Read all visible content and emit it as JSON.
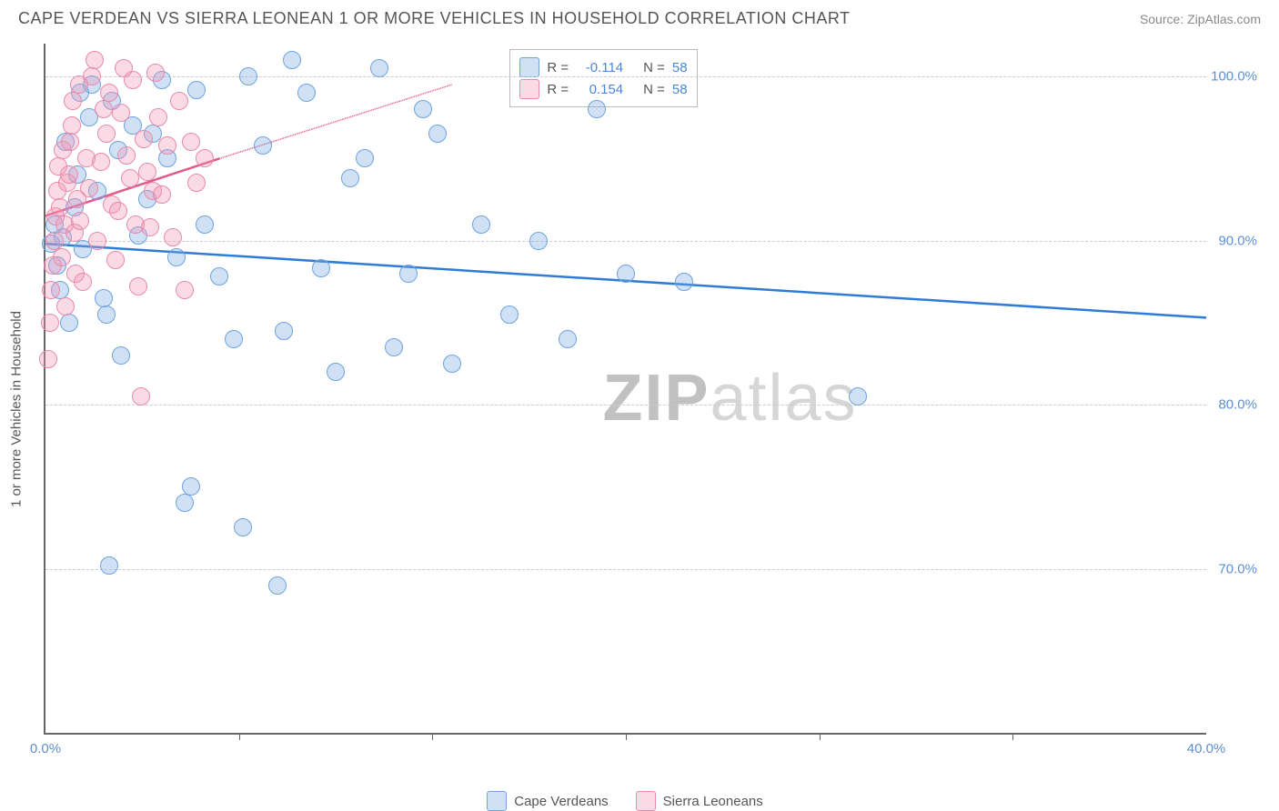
{
  "header": {
    "title": "CAPE VERDEAN VS SIERRA LEONEAN 1 OR MORE VEHICLES IN HOUSEHOLD CORRELATION CHART",
    "source_prefix": "Source: ",
    "source": "ZipAtlas.com"
  },
  "chart": {
    "type": "scatter",
    "ylabel": "1 or more Vehicles in Household",
    "xlim": [
      0,
      40
    ],
    "ylim": [
      60,
      102
    ],
    "xticks": [
      {
        "v": 0,
        "l": "0.0%"
      },
      {
        "v": 40,
        "l": "40.0%"
      }
    ],
    "xticks_minor": [
      6.67,
      13.33,
      20,
      26.67,
      33.33
    ],
    "yticks": [
      {
        "v": 70,
        "l": "70.0%"
      },
      {
        "v": 80,
        "l": "80.0%"
      },
      {
        "v": 90,
        "l": "90.0%"
      },
      {
        "v": 100,
        "l": "100.0%"
      }
    ],
    "grid_color": "#cccccc",
    "background_color": "#ffffff",
    "series": [
      {
        "name": "Cape Verdeans",
        "color_fill": "rgba(120,170,230,0.35)",
        "color_stroke": "#6fa3dd",
        "line_color": "#2f7cd6",
        "line_dash": "solid",
        "R": "-0.114",
        "N": "58",
        "trend": {
          "x1": 0,
          "y1": 89.8,
          "x2": 40,
          "y2": 85.3
        },
        "trend_extrap": null,
        "points": [
          [
            0.2,
            89.8
          ],
          [
            0.3,
            91
          ],
          [
            0.4,
            88.5
          ],
          [
            0.5,
            87
          ],
          [
            0.6,
            90.2
          ],
          [
            0.7,
            96
          ],
          [
            0.8,
            85
          ],
          [
            1.0,
            92
          ],
          [
            1.1,
            94
          ],
          [
            1.2,
            99
          ],
          [
            1.3,
            89.5
          ],
          [
            1.5,
            97.5
          ],
          [
            1.6,
            99.5
          ],
          [
            1.8,
            93
          ],
          [
            2.0,
            86.5
          ],
          [
            2.1,
            85.5
          ],
          [
            2.2,
            70.2
          ],
          [
            2.3,
            98.5
          ],
          [
            2.5,
            95.5
          ],
          [
            2.6,
            83
          ],
          [
            3.0,
            97
          ],
          [
            3.2,
            90.3
          ],
          [
            3.5,
            92.5
          ],
          [
            3.7,
            96.5
          ],
          [
            4.0,
            99.8
          ],
          [
            4.2,
            95
          ],
          [
            4.5,
            89
          ],
          [
            4.8,
            74
          ],
          [
            5.0,
            75
          ],
          [
            5.2,
            99.2
          ],
          [
            5.5,
            91
          ],
          [
            6.0,
            87.8
          ],
          [
            6.5,
            84
          ],
          [
            6.8,
            72.5
          ],
          [
            7.0,
            100
          ],
          [
            7.5,
            95.8
          ],
          [
            8.0,
            69
          ],
          [
            8.2,
            84.5
          ],
          [
            8.5,
            101
          ],
          [
            9.0,
            99
          ],
          [
            9.5,
            88.3
          ],
          [
            10,
            82
          ],
          [
            10.5,
            93.8
          ],
          [
            11,
            95
          ],
          [
            11.5,
            100.5
          ],
          [
            12,
            83.5
          ],
          [
            12.5,
            88
          ],
          [
            13,
            98
          ],
          [
            13.5,
            96.5
          ],
          [
            14,
            82.5
          ],
          [
            15,
            91
          ],
          [
            16,
            85.5
          ],
          [
            17,
            90
          ],
          [
            18,
            84
          ],
          [
            19,
            98
          ],
          [
            22,
            87.5
          ],
          [
            28,
            80.5
          ],
          [
            20,
            88
          ]
        ]
      },
      {
        "name": "Sierra Leoneans",
        "color_fill": "rgba(240,150,180,0.35)",
        "color_stroke": "#e88aad",
        "line_color": "#e05a8c",
        "line_dash": "solid",
        "R": "0.154",
        "N": "58",
        "trend": {
          "x1": 0,
          "y1": 91.5,
          "x2": 6,
          "y2": 95
        },
        "trend_extrap": {
          "x1": 6,
          "y1": 95,
          "x2": 14,
          "y2": 99.5
        },
        "points": [
          [
            0.1,
            82.8
          ],
          [
            0.15,
            85
          ],
          [
            0.2,
            87
          ],
          [
            0.25,
            88.5
          ],
          [
            0.3,
            90
          ],
          [
            0.35,
            91.5
          ],
          [
            0.4,
            93
          ],
          [
            0.45,
            94.5
          ],
          [
            0.5,
            92
          ],
          [
            0.55,
            89
          ],
          [
            0.6,
            95.5
          ],
          [
            0.65,
            91
          ],
          [
            0.7,
            86
          ],
          [
            0.75,
            93.5
          ],
          [
            0.8,
            94
          ],
          [
            0.85,
            96
          ],
          [
            0.9,
            97
          ],
          [
            0.95,
            98.5
          ],
          [
            1.0,
            90.5
          ],
          [
            1.05,
            88
          ],
          [
            1.1,
            92.5
          ],
          [
            1.15,
            99.5
          ],
          [
            1.2,
            91.2
          ],
          [
            1.3,
            87.5
          ],
          [
            1.4,
            95
          ],
          [
            1.5,
            93.2
          ],
          [
            1.6,
            100
          ],
          [
            1.7,
            101
          ],
          [
            1.8,
            90
          ],
          [
            1.9,
            94.8
          ],
          [
            2.0,
            98
          ],
          [
            2.1,
            96.5
          ],
          [
            2.2,
            99
          ],
          [
            2.3,
            92.2
          ],
          [
            2.4,
            88.8
          ],
          [
            2.5,
            91.8
          ],
          [
            2.6,
            97.8
          ],
          [
            2.7,
            100.5
          ],
          [
            2.8,
            95.2
          ],
          [
            2.9,
            93.8
          ],
          [
            3.0,
            99.8
          ],
          [
            3.1,
            91
          ],
          [
            3.2,
            87.2
          ],
          [
            3.3,
            80.5
          ],
          [
            3.4,
            96.2
          ],
          [
            3.5,
            94.2
          ],
          [
            3.6,
            90.8
          ],
          [
            3.7,
            93
          ],
          [
            3.8,
            100.2
          ],
          [
            3.9,
            97.5
          ],
          [
            4.0,
            92.8
          ],
          [
            4.2,
            95.8
          ],
          [
            4.4,
            90.2
          ],
          [
            4.6,
            98.5
          ],
          [
            4.8,
            87
          ],
          [
            5.0,
            96
          ],
          [
            5.2,
            93.5
          ],
          [
            5.5,
            95
          ]
        ]
      }
    ]
  },
  "legend_top": {
    "label_R": "R =",
    "label_N": "N ="
  },
  "legend_bottom": {
    "items": [
      "Cape Verdeans",
      "Sierra Leoneans"
    ]
  },
  "watermark": {
    "zip": "ZIP",
    "rest": "atlas"
  }
}
